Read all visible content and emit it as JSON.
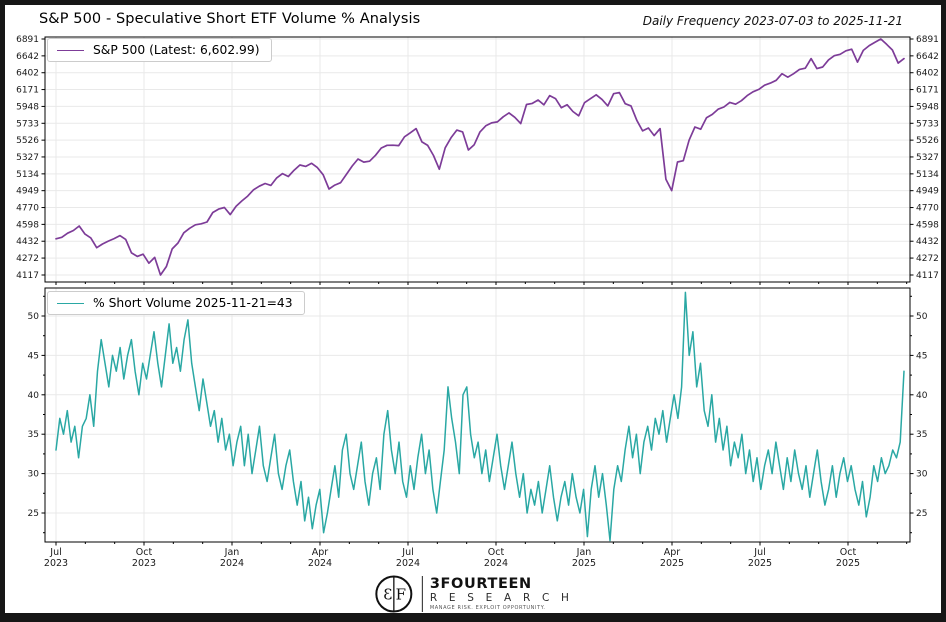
{
  "header": {
    "title": "S&P 500 - Speculative Short ETF Volume % Analysis",
    "subtitle": "Daily Frequency 2023-07-03 to 2025-11-21"
  },
  "footer": {
    "brand_name": "3FOURTEEN",
    "brand_sub": "R E S E A R C H",
    "tagline": "MANAGE RISK. EXPLOIT OPPORTUNITY.",
    "monogram": "3F-circle-logo"
  },
  "colors": {
    "sp500_line": "#7d3c98",
    "short_volume_line": "#2aa8a4",
    "grid": "#e9e9e9",
    "spine": "#000000",
    "tick_label": "#1a1a1a",
    "frame": "#161616"
  },
  "chart_data": [
    {
      "type": "line",
      "panel": "top",
      "legend": "S&P 500 (Latest: 6,602.99)",
      "series_name": "S&P 500",
      "latest": 6602.99,
      "yscale": "log",
      "yticks": [
        6891,
        6642,
        6402,
        6171,
        5948,
        5733,
        5526,
        5327,
        5134,
        4949,
        4770,
        4598,
        4432,
        4272,
        4117
      ],
      "ylim": [
        4060,
        6990
      ],
      "x_start": "2023-07-03",
      "x_end": "2025-11-21",
      "grid": true,
      "legend_position": "upper-left",
      "values": [
        4455,
        4470,
        4510,
        4537,
        4582,
        4501,
        4464,
        4370,
        4405,
        4433,
        4457,
        4487,
        4450,
        4320,
        4288,
        4308,
        4224,
        4278,
        4117,
        4194,
        4358,
        4415,
        4514,
        4559,
        4594,
        4604,
        4622,
        4719,
        4754,
        4770,
        4697,
        4784,
        4840,
        4891,
        4958,
        4997,
        5027,
        5006,
        5089,
        5137,
        5104,
        5175,
        5234,
        5218,
        5254,
        5204,
        5123,
        4967,
        5010,
        5036,
        5128,
        5223,
        5303,
        5267,
        5278,
        5346,
        5432,
        5464,
        5465,
        5460,
        5567,
        5615,
        5667,
        5505,
        5463,
        5344,
        5186,
        5434,
        5554,
        5648,
        5626,
        5408,
        5471,
        5626,
        5702,
        5738,
        5751,
        5815,
        5864,
        5808,
        5729,
        5973,
        5987,
        6032,
        5969,
        6090,
        6051,
        5931,
        5970,
        5882,
        5827,
        5996,
        6049,
        6101,
        6040,
        5955,
        6115,
        6130,
        5983,
        5955,
        5770,
        5639,
        5675,
        5581,
        5667,
        5074,
        4950,
        5268,
        5283,
        5525,
        5687,
        5660,
        5803,
        5845,
        5912,
        5940,
        6000,
        5977,
        6023,
        6090,
        6141,
        6173,
        6230,
        6259,
        6297,
        6389,
        6340,
        6389,
        6449,
        6466,
        6602,
        6460,
        6482,
        6584,
        6644,
        6664,
        6716,
        6740,
        6552,
        6721,
        6792,
        6841,
        6891,
        6812,
        6728,
        6538,
        6603
      ]
    },
    {
      "type": "line",
      "panel": "bottom",
      "legend": "% Short Volume 2025-11-21=43",
      "series_name": "% Short Volume",
      "latest": 43,
      "yscale": "linear",
      "yticks": [
        50,
        45,
        40,
        35,
        30,
        25
      ],
      "ylim": [
        21,
        53.5
      ],
      "grid": true,
      "legend_position": "upper-left",
      "xticks": [
        [
          "Jul",
          "2023"
        ],
        [
          "Oct",
          "2023"
        ],
        [
          "Jan",
          "2024"
        ],
        [
          "Apr",
          "2024"
        ],
        [
          "Jul",
          "2024"
        ],
        [
          "Oct",
          "2024"
        ],
        [
          "Jan",
          "2025"
        ],
        [
          "Apr",
          "2025"
        ],
        [
          "Jul",
          "2025"
        ],
        [
          "Oct",
          "2025"
        ]
      ],
      "values": [
        33,
        37,
        35,
        38,
        34,
        36,
        32,
        36,
        37,
        40,
        36,
        43,
        47,
        44,
        41,
        45,
        43,
        46,
        42,
        45,
        47,
        43,
        40,
        44,
        42,
        45,
        48,
        44,
        41,
        45,
        49,
        44,
        46,
        43,
        47,
        49.5,
        44,
        41,
        38,
        42,
        39,
        36,
        38,
        34,
        37,
        33,
        35,
        31,
        34,
        36,
        31,
        35,
        30,
        33,
        36,
        31,
        29,
        32,
        35,
        30,
        28,
        31,
        33,
        29,
        26,
        29,
        24,
        27,
        23,
        26,
        28,
        22.5,
        25,
        28,
        31,
        27,
        33,
        35,
        30,
        28,
        31,
        34,
        29,
        26,
        30,
        32,
        28,
        35,
        38,
        33,
        30,
        34,
        29,
        27,
        31,
        28,
        32,
        35,
        30,
        33,
        28,
        25,
        29,
        33,
        41,
        37,
        34,
        30,
        40,
        41,
        35,
        32,
        34,
        30,
        33,
        29,
        32,
        35,
        31,
        28,
        31,
        34,
        30,
        27,
        30,
        25,
        28,
        26,
        29,
        25,
        28,
        31,
        27,
        24,
        27,
        29,
        26,
        30,
        27,
        25,
        28,
        22,
        28,
        31,
        27,
        30,
        26,
        21.5,
        28,
        31,
        29,
        33,
        36,
        32,
        35,
        30,
        34,
        36,
        33,
        37,
        35,
        38,
        34,
        37,
        40,
        37,
        41,
        53,
        45,
        48,
        41,
        44,
        38,
        36,
        40,
        34,
        37,
        33,
        36,
        31,
        34,
        32,
        35,
        30,
        33,
        29,
        32,
        28,
        31,
        33,
        30,
        34,
        31,
        28,
        32,
        29,
        33,
        30,
        28,
        31,
        27,
        30,
        33,
        29,
        26,
        28,
        31,
        27,
        30,
        32,
        29,
        31,
        28,
        26,
        29,
        24.5,
        27,
        31,
        29,
        32,
        30,
        31,
        33,
        32,
        34,
        43
      ]
    }
  ]
}
